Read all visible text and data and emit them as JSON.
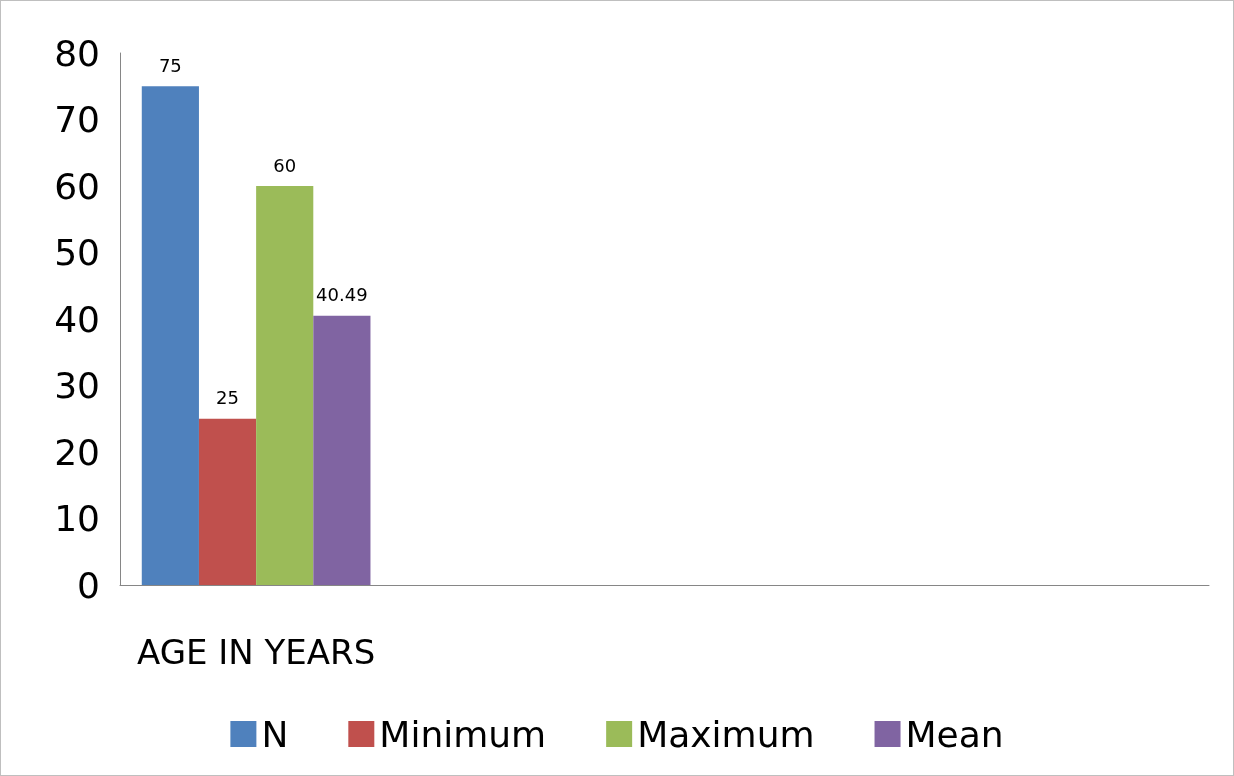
{
  "chart_data": {
    "type": "bar",
    "categories": [
      "AGE IN YEARS",
      null,
      null,
      null
    ],
    "series": [
      {
        "name": "N",
        "color": "#4f81bd",
        "values": [
          75,
          null,
          null,
          null
        ]
      },
      {
        "name": "Minimum",
        "color": "#c0504d",
        "values": [
          25,
          null,
          null,
          null
        ]
      },
      {
        "name": "Maximum",
        "color": "#9bbb59",
        "values": [
          60,
          null,
          null,
          null
        ]
      },
      {
        "name": "Mean",
        "color": "#8064a2",
        "values": [
          40.49,
          null,
          null,
          null
        ]
      }
    ],
    "ylim": [
      0,
      80
    ],
    "yticks": [
      0,
      10,
      20,
      30,
      40,
      50,
      60,
      70,
      80
    ],
    "grid": false,
    "legend": "bottom",
    "data_labels": true
  }
}
